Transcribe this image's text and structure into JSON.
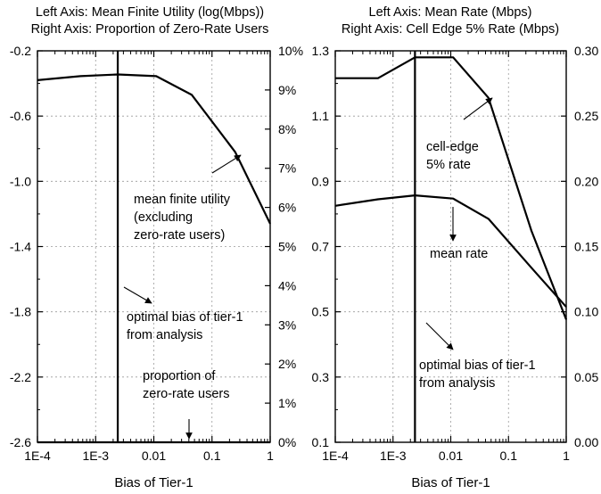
{
  "chart_data": [
    {
      "type": "line",
      "title": [
        "Left Axis: Mean Finite Utility (log(Mbps))",
        "Right Axis: Proportion of Zero-Rate Users"
      ],
      "xlabel": "Bias of Tier-1",
      "x_scale": "log",
      "xlim": [
        0.0001,
        1
      ],
      "x_ticks": [
        0.0001,
        0.001,
        0.01,
        0.1,
        1
      ],
      "x_tick_labels": [
        "1E-4",
        "1E-3",
        "0.01",
        "0.1",
        "1"
      ],
      "ylim": [
        -2.6,
        -0.2
      ],
      "y_ticks": [
        -2.6,
        -2.2,
        -1.8,
        -1.4,
        -1.0,
        -0.6,
        -0.2
      ],
      "y_tick_labels": [
        "-2.6",
        "-2.2",
        "-1.8",
        "-1.4",
        "-1.0",
        "-0.6",
        "-0.2"
      ],
      "y2lim": [
        0,
        10
      ],
      "y2_ticks": [
        0,
        1,
        2,
        3,
        4,
        5,
        6,
        7,
        8,
        9,
        10
      ],
      "y2_tick_labels": [
        "0%",
        "1%",
        "2%",
        "3%",
        "4%",
        "5%",
        "6%",
        "7%",
        "8%",
        "9%",
        "10%"
      ],
      "grid": true,
      "series": [
        {
          "name": "mean finite utility (excluding zero-rate users)",
          "axis": "left",
          "x": [
            0.0001,
            0.00055,
            0.0024,
            0.011,
            0.045,
            0.25,
            1
          ],
          "y": [
            -0.38,
            -0.355,
            -0.345,
            -0.355,
            -0.47,
            -0.82,
            -1.26
          ]
        },
        {
          "name": "proportion of zero-rate users",
          "axis": "right",
          "x": [
            0.0001,
            1
          ],
          "y": [
            0,
            0
          ]
        }
      ],
      "vertical_line": {
        "x": 0.0024,
        "label": [
          "optimal bias of tier-1",
          "from analysis"
        ]
      },
      "annotations": [
        {
          "lines": [
            "mean finite utility",
            "(excluding",
            "zero-rate users)"
          ]
        },
        {
          "lines": [
            "optimal bias of tier-1",
            "from analysis"
          ]
        },
        {
          "lines": [
            "proportion of",
            "zero-rate users"
          ]
        }
      ]
    },
    {
      "type": "line",
      "title": [
        "Left Axis: Mean Rate (Mbps)",
        "Right Axis: Cell Edge 5% Rate (Mbps)"
      ],
      "xlabel": "Bias of Tier-1",
      "x_scale": "log",
      "xlim": [
        0.0001,
        1
      ],
      "x_ticks": [
        0.0001,
        0.001,
        0.01,
        0.1,
        1
      ],
      "x_tick_labels": [
        "1E-4",
        "1E-3",
        "0.01",
        "0.1",
        "1"
      ],
      "ylim": [
        0.1,
        1.3
      ],
      "y_ticks": [
        0.1,
        0.3,
        0.5,
        0.7,
        0.9,
        1.1,
        1.3
      ],
      "y_tick_labels": [
        "0.1",
        "0.3",
        "0.5",
        "0.7",
        "0.9",
        "1.1",
        "1.3"
      ],
      "y2lim": [
        0,
        0.3
      ],
      "y2_ticks": [
        0,
        0.05,
        0.1,
        0.15,
        0.2,
        0.25,
        0.3
      ],
      "y2_tick_labels": [
        "0.00",
        "0.05",
        "0.10",
        "0.15",
        "0.20",
        "0.25",
        "0.30"
      ],
      "grid": true,
      "series": [
        {
          "name": "mean rate",
          "axis": "left",
          "x": [
            0.0001,
            0.00055,
            0.0024,
            0.011,
            0.045,
            0.25,
            1
          ],
          "y": [
            0.825,
            0.845,
            0.857,
            0.847,
            0.785,
            0.635,
            0.515
          ]
        },
        {
          "name": "cell-edge 5% rate",
          "axis": "right",
          "x": [
            0.0001,
            0.00055,
            0.0024,
            0.011,
            0.045,
            0.25,
            1
          ],
          "y": [
            0.279,
            0.279,
            0.295,
            0.295,
            0.264,
            0.162,
            0.094
          ]
        }
      ],
      "vertical_line": {
        "x": 0.0024,
        "label": [
          "optimal bias of tier-1",
          "from analysis"
        ]
      },
      "annotations": [
        {
          "lines": [
            "cell-edge",
            "5% rate"
          ]
        },
        {
          "lines": [
            "mean rate"
          ]
        },
        {
          "lines": [
            "optimal bias of tier-1",
            "from analysis"
          ]
        }
      ]
    }
  ]
}
